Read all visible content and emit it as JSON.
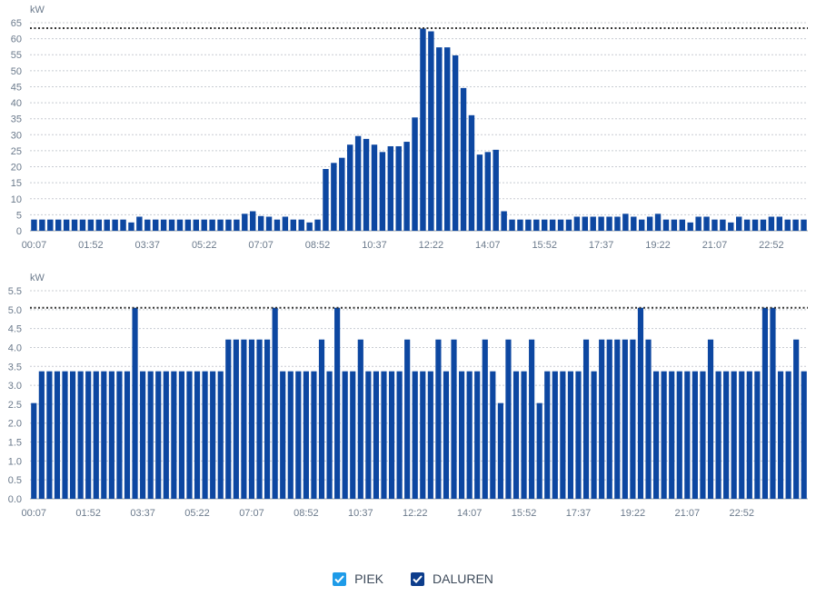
{
  "colors": {
    "bar": "#0d47a1",
    "piek": "#1e9be8",
    "grid": "#c8ccd2",
    "axis_text": "#6b7a8c",
    "threshold": "#333333"
  },
  "legend": [
    {
      "label": "PIEK",
      "color": "#1e9be8"
    },
    {
      "label": "DALUREN",
      "color": "#0d3d8c"
    }
  ],
  "chart_data": [
    {
      "type": "bar",
      "unit": "kW",
      "ylim": [
        0,
        65
      ],
      "yticks": [
        "0",
        "5",
        "10",
        "15",
        "20",
        "25",
        "30",
        "35",
        "40",
        "45",
        "50",
        "55",
        "60",
        "65"
      ],
      "xtick_labels": [
        "00:07",
        "01:52",
        "03:37",
        "05:22",
        "07:07",
        "08:52",
        "10:37",
        "12:22",
        "14:07",
        "15:52",
        "17:37",
        "19:22",
        "21:07",
        "22:52"
      ],
      "threshold": 63.3,
      "values": [
        3.5,
        3.5,
        3.5,
        3.5,
        3.5,
        3.5,
        3.5,
        3.5,
        3.5,
        3.5,
        3.5,
        3.5,
        2.6,
        4.4,
        3.5,
        3.5,
        3.5,
        3.5,
        3.5,
        3.5,
        3.5,
        3.5,
        3.5,
        3.5,
        3.5,
        3.5,
        5.3,
        6.1,
        4.6,
        4.4,
        3.5,
        4.4,
        3.5,
        3.5,
        2.6,
        3.5,
        19.3,
        21.2,
        22.8,
        26.9,
        29.6,
        28.7,
        26.9,
        24.6,
        26.4,
        26.4,
        27.8,
        35.4,
        63.2,
        62.3,
        57.3,
        57.3,
        54.8,
        44.6,
        36.1,
        23.8,
        24.6,
        25.3,
        6.1,
        3.5,
        3.5,
        3.5,
        3.5,
        3.5,
        3.5,
        3.5,
        3.5,
        4.4,
        4.4,
        4.4,
        4.4,
        4.4,
        4.4,
        5.3,
        4.4,
        3.5,
        4.4,
        5.3,
        3.5,
        3.5,
        3.5,
        2.6,
        4.4,
        4.4,
        3.5,
        3.5,
        2.6,
        4.4,
        3.5,
        3.5,
        3.5,
        4.4,
        4.4,
        3.5,
        3.5,
        3.5
      ]
    },
    {
      "type": "bar",
      "unit": "kW",
      "ylim": [
        0,
        5.5
      ],
      "yticks": [
        "0.0",
        "0.5",
        "1.0",
        "1.5",
        "2.0",
        "2.5",
        "3.0",
        "3.5",
        "4.0",
        "4.5",
        "5.0",
        "5.5"
      ],
      "xtick_labels": [
        "00:07",
        "01:52",
        "03:37",
        "05:22",
        "07:07",
        "08:52",
        "10:37",
        "12:22",
        "14:07",
        "15:52",
        "17:37",
        "19:22",
        "21:07",
        "22:52"
      ],
      "threshold": 5.05,
      "values": [
        2.53,
        3.37,
        3.37,
        3.37,
        3.37,
        3.37,
        3.37,
        3.37,
        3.37,
        3.37,
        3.37,
        3.37,
        3.37,
        5.05,
        3.37,
        3.37,
        3.37,
        3.37,
        3.37,
        3.37,
        3.37,
        3.37,
        3.37,
        3.37,
        3.37,
        4.21,
        4.21,
        4.21,
        4.21,
        4.21,
        4.21,
        5.05,
        3.37,
        3.37,
        3.37,
        3.37,
        3.37,
        4.21,
        3.37,
        5.05,
        3.37,
        3.37,
        4.21,
        3.37,
        3.37,
        3.37,
        3.37,
        3.37,
        4.21,
        3.37,
        3.37,
        3.37,
        4.21,
        3.37,
        4.21,
        3.37,
        3.37,
        3.37,
        4.21,
        3.37,
        2.53,
        4.21,
        3.37,
        3.37,
        4.21,
        2.53,
        3.37,
        3.37,
        3.37,
        3.37,
        3.37,
        4.21,
        3.37,
        4.21,
        4.21,
        4.21,
        4.21,
        4.21,
        5.05,
        4.21,
        3.37,
        3.37,
        3.37,
        3.37,
        3.37,
        3.37,
        3.37,
        4.21,
        3.37,
        3.37,
        3.37,
        3.37,
        3.37,
        3.37,
        5.05,
        5.05,
        3.37,
        3.37,
        4.21,
        3.37
      ]
    }
  ]
}
